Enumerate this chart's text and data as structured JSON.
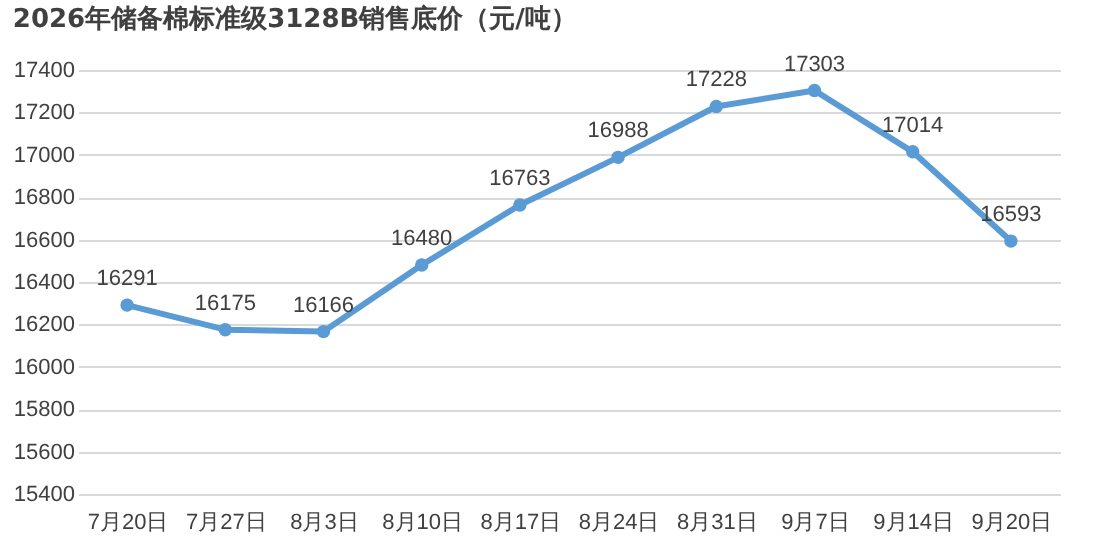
{
  "chart_data": {
    "type": "line",
    "title": "2026年储备棉标准级3128B销售底价（元/吨）",
    "categories": [
      "7月20日",
      "7月27日",
      "8月3日",
      "8月10日",
      "8月17日",
      "8月24日",
      "8月31日",
      "9月7日",
      "9月14日",
      "9月20日"
    ],
    "series": [
      {
        "color": "#5b9bd5",
        "values": [
          16291,
          16175,
          16166,
          16480,
          16763,
          16988,
          17228,
          17303,
          17014,
          16593
        ]
      }
    ],
    "ylim": [
      15400,
      17400
    ],
    "yticks": [
      15400,
      15600,
      15800,
      16000,
      16200,
      16400,
      16600,
      16800,
      17000,
      17200,
      17400
    ],
    "grid": "y",
    "marker": "circle",
    "data_labels": true
  }
}
